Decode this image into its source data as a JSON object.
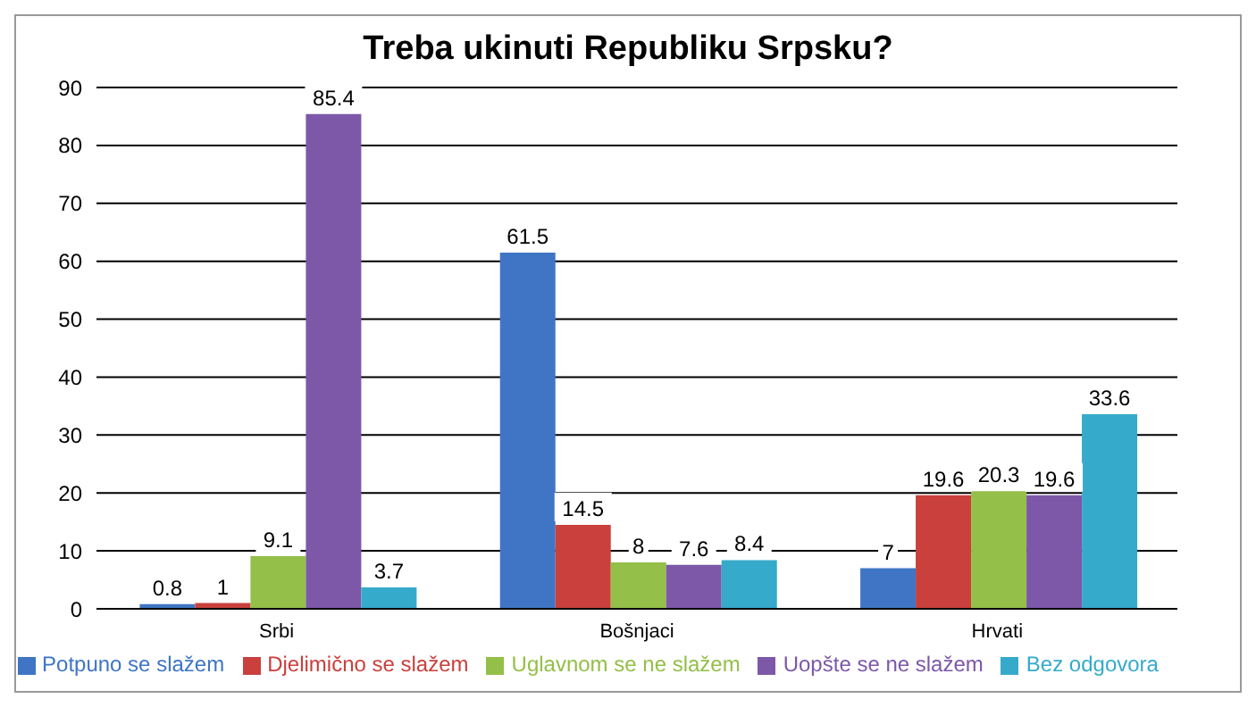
{
  "chart_data": {
    "type": "bar",
    "title": "Treba ukinuti Republiku Srpsku?",
    "categories": [
      "Srbi",
      "Bošnjaci",
      "Hrvati"
    ],
    "series": [
      {
        "name": "Potpuno se slažem",
        "color": "#3f75c4",
        "values": [
          0.8,
          61.5,
          7
        ]
      },
      {
        "name": "Djelimično se slažem",
        "color": "#c9403c",
        "values": [
          1,
          14.5,
          19.6
        ]
      },
      {
        "name": "Uglavnom se ne slažem",
        "color": "#94bf48",
        "values": [
          9.1,
          8,
          20.3
        ]
      },
      {
        "name": "Uopšte se ne slažem",
        "color": "#7d58a8",
        "values": [
          85.4,
          7.6,
          19.6
        ]
      },
      {
        "name": "Bez odgovora",
        "color": "#36aacb",
        "values": [
          3.7,
          8.4,
          33.6
        ]
      }
    ],
    "ylim": [
      0,
      90
    ],
    "yticks": [
      0,
      10,
      20,
      30,
      40,
      50,
      60,
      70,
      80,
      90
    ],
    "grid": "y",
    "legend": "bottom",
    "data_labels": true
  }
}
